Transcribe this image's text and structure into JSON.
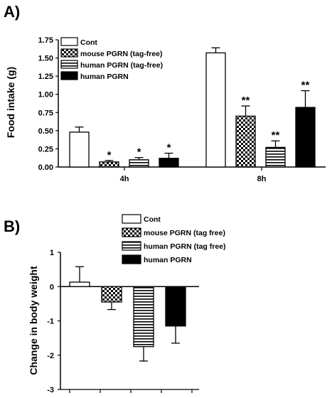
{
  "chart_data": [
    {
      "panel": "A)",
      "type": "bar",
      "ylabel": "Food intake (g)",
      "ylim": [
        0,
        1.75
      ],
      "yticks": [
        "0.00",
        "0.25",
        "0.50",
        "0.75",
        "1.00",
        "1.25",
        "1.50",
        "1.75"
      ],
      "categories": [
        "4h",
        "8h"
      ],
      "legend_position": "top-left",
      "series": [
        {
          "name": "Cont",
          "pattern": "white",
          "values": [
            0.48,
            1.57
          ],
          "errors": [
            0.07,
            0.07
          ],
          "sig": [
            "",
            ""
          ]
        },
        {
          "name": "mouse PGRN (tag-free)",
          "pattern": "checker",
          "values": [
            0.07,
            0.7
          ],
          "errors": [
            0.02,
            0.14
          ],
          "sig": [
            "*",
            "**"
          ]
        },
        {
          "name": "human PGRN (tag-free)",
          "pattern": "hstripe",
          "values": [
            0.1,
            0.27
          ],
          "errors": [
            0.03,
            0.09
          ],
          "sig": [
            "*",
            "**"
          ]
        },
        {
          "name": "human PGRN",
          "pattern": "black",
          "values": [
            0.12,
            0.82
          ],
          "errors": [
            0.07,
            0.23
          ],
          "sig": [
            "*",
            "**"
          ]
        }
      ]
    },
    {
      "panel": "B)",
      "type": "bar",
      "ylabel": "Change in body weight",
      "ylim": [
        -3,
        1
      ],
      "yticks": [
        "-3",
        "-2",
        "-1",
        "0",
        "1"
      ],
      "legend_position": "top",
      "series": [
        {
          "name": "Cont",
          "pattern": "white",
          "value": 0.13,
          "error": 0.45
        },
        {
          "name": "mouse PGRN (tag free)",
          "pattern": "checker",
          "value": -0.45,
          "error": 0.22
        },
        {
          "name": "human PGRN (tag free)",
          "pattern": "hstripe",
          "value": -1.75,
          "error": 0.42
        },
        {
          "name": "human PGRN",
          "pattern": "black",
          "value": -1.15,
          "error": 0.5
        }
      ]
    }
  ]
}
